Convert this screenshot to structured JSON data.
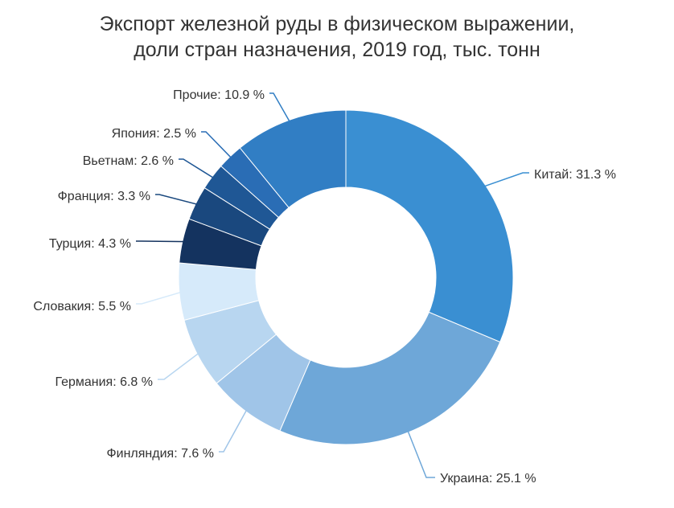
{
  "chart_data": {
    "type": "donut",
    "title": "Экспорт железной руды в физическом выражении,",
    "subtitle": "доли стран назначения, 2019 год, тыс. тонн",
    "unit": "%",
    "categories": [
      "Китай",
      "Украина",
      "Финляндия",
      "Германия",
      "Словакия",
      "Турция",
      "Франция",
      "Вьетнам",
      "Япония",
      "Прочие"
    ],
    "values": [
      31.3,
      25.1,
      7.6,
      6.8,
      5.5,
      4.3,
      3.3,
      2.6,
      2.5,
      10.9
    ],
    "labels": [
      "Китай: 31.3 %",
      "Украина: 25.1 %",
      "Финляндия: 7.6 %",
      "Германия: 6.8 %",
      "Словакия: 5.5 %",
      "Турция: 4.3 %",
      "Франция: 3.3 %",
      "Вьетнам: 2.6 %",
      "Япония: 2.5 %",
      "Прочие: 10.9 %"
    ],
    "colors": [
      "#3a8fd2",
      "#6ea7d8",
      "#a0c5e8",
      "#b8d6f0",
      "#d6eafa",
      "#14335f",
      "#1a487e",
      "#1f5795",
      "#2a6db5",
      "#317ec4"
    ],
    "legend": "none"
  }
}
